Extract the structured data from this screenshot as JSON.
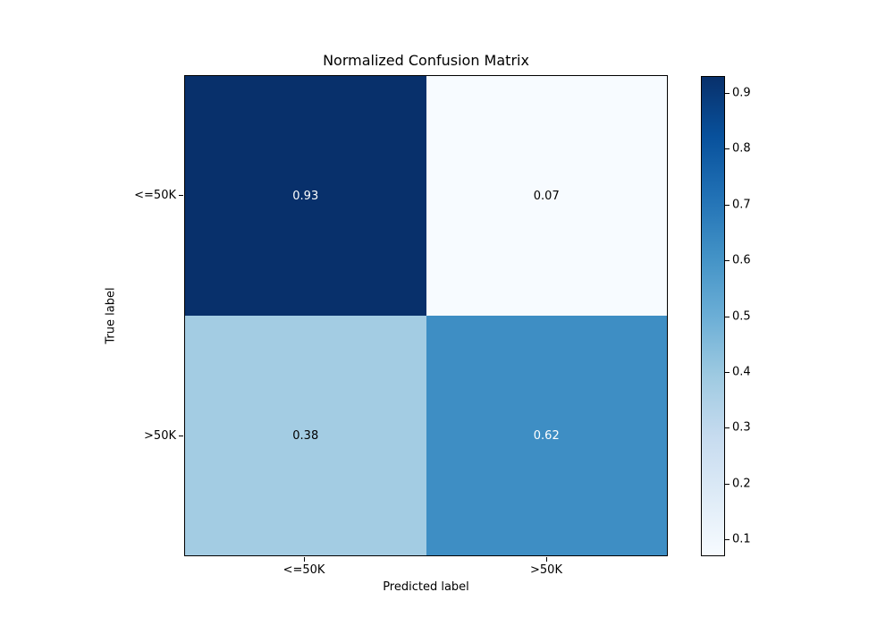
{
  "figure": {
    "background": "#ffffff"
  },
  "chart_data": {
    "type": "heatmap",
    "title": "Normalized Confusion Matrix",
    "xlabel": "Predicted label",
    "ylabel": "True label",
    "x_categories": [
      "<=50K",
      ">50K"
    ],
    "y_categories": [
      "<=50K",
      ">50K"
    ],
    "matrix": [
      [
        0.93,
        0.07
      ],
      [
        0.38,
        0.62
      ]
    ],
    "cells": [
      {
        "true_label": "<=50K",
        "predicted_label": "<=50K",
        "value": 0.93,
        "label": "0.93",
        "bg": "#08306b",
        "fg": "#ffffff"
      },
      {
        "true_label": "<=50K",
        "predicted_label": ">50K",
        "value": 0.07,
        "label": "0.07",
        "bg": "#f7fbff",
        "fg": "#000000"
      },
      {
        "true_label": ">50K",
        "predicted_label": "<=50K",
        "value": 0.38,
        "label": "0.38",
        "bg": "#a3cce3",
        "fg": "#000000"
      },
      {
        "true_label": ">50K",
        "predicted_label": ">50K",
        "value": 0.62,
        "label": "0.62",
        "bg": "#3e8ec4",
        "fg": "#ffffff"
      }
    ],
    "colormap": "Blues",
    "colorbar": {
      "vmin": 0.07,
      "vmax": 0.93,
      "ticks": [
        0.1,
        0.2,
        0.3,
        0.4,
        0.5,
        0.6,
        0.7,
        0.8,
        0.9
      ],
      "tick_labels": [
        "0.1",
        "0.2",
        "0.3",
        "0.4",
        "0.5",
        "0.6",
        "0.7",
        "0.8",
        "0.9"
      ],
      "gradient_stops": [
        "#f7fbff",
        "#deebf7",
        "#c6dbef",
        "#9ecae1",
        "#6baed6",
        "#4292c6",
        "#2171b5",
        "#08519c",
        "#08306b"
      ]
    },
    "legend": "none",
    "grid": false
  }
}
